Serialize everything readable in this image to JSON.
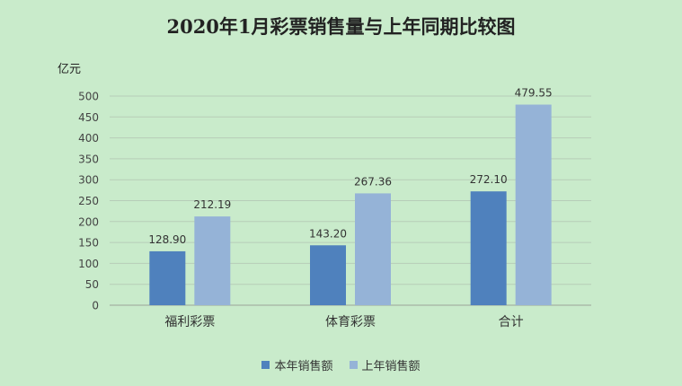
{
  "chart_data": {
    "type": "bar",
    "title": "2020年1月彩票销售量与上年同期比较图",
    "ylabel": "亿元",
    "xlabel": "",
    "ylim": [
      0,
      500
    ],
    "yticks": [
      0,
      50,
      100,
      150,
      200,
      250,
      300,
      350,
      400,
      450,
      500
    ],
    "grid": true,
    "legend_position": "bottom",
    "categories": [
      "福利彩票",
      "体育彩票",
      "合计"
    ],
    "series": [
      {
        "name": "本年销售额",
        "color": "#4f81bd",
        "values": [
          128.9,
          143.2,
          272.1
        ],
        "labels": [
          "128.90",
          "143.20",
          "272.10"
        ]
      },
      {
        "name": "上年销售额",
        "color": "#95b3d7",
        "values": [
          212.19,
          267.36,
          479.55
        ],
        "labels": [
          "212.19",
          "267.36",
          "479.55"
        ]
      }
    ]
  }
}
